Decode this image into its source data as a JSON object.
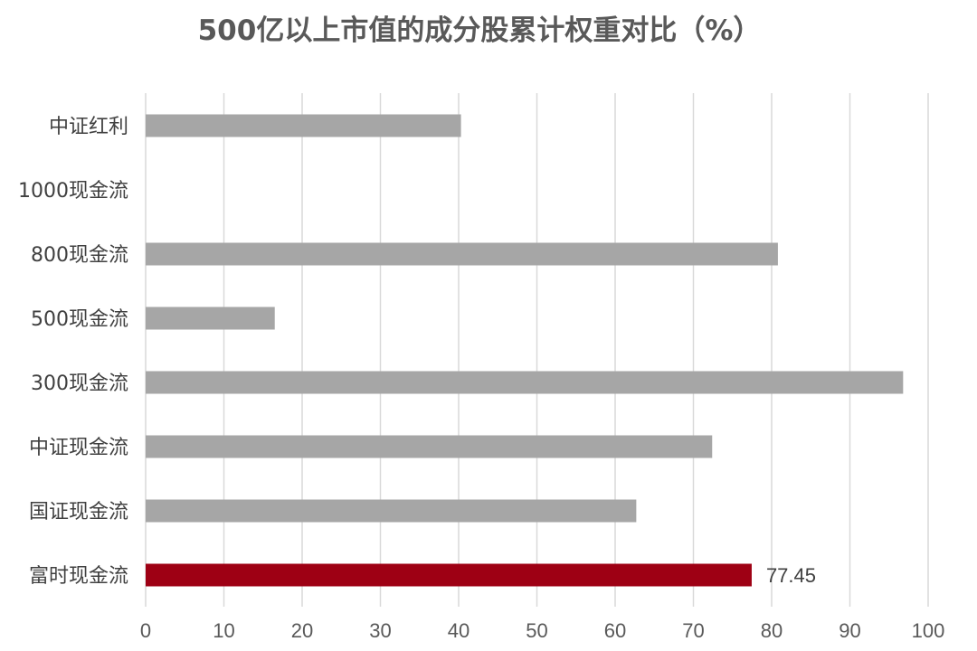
{
  "chart_data": {
    "type": "bar",
    "orientation": "horizontal",
    "title": "500亿以上市值的成分股累计权重对比（%）",
    "categories": [
      "中证红利",
      "1000现金流",
      "800现金流",
      "500现金流",
      "300现金流",
      "中证现金流",
      "国证现金流",
      "富时现金流"
    ],
    "values": [
      40.3,
      0,
      80.8,
      16.5,
      96.8,
      72.4,
      62.7,
      77.45
    ],
    "highlight_index": 7,
    "highlight_label": "77.45",
    "xlim": [
      0,
      100
    ],
    "xticks": [
      "0",
      "10",
      "20",
      "30",
      "40",
      "50",
      "60",
      "70",
      "80",
      "90",
      "100"
    ],
    "grid": true,
    "xlabel": "",
    "ylabel": "",
    "colors": {
      "bar": "#a6a6a6",
      "highlight": "#9e0014",
      "grid": "#d9d9d9",
      "text": "#595959"
    }
  }
}
